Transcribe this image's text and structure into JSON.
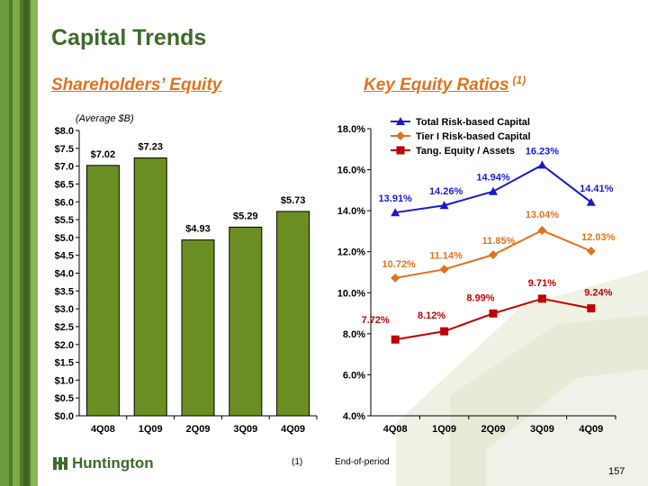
{
  "title": "Capital Trends",
  "left_heading": "Shareholders’ Equity",
  "right_heading": "Key Equity Ratios",
  "right_heading_sup": "(1)",
  "unit_note": "(Average $B)",
  "footnote": {
    "num": "(1)",
    "text": "End-of-period"
  },
  "page_number": "157",
  "logo_text": "Huntington",
  "colors": {
    "green": "#6b8e23",
    "brand_green": "#3d6b2a",
    "orange": "#e0731f",
    "blue": "#1a1acc",
    "red": "#c00000"
  },
  "chart_data": [
    {
      "type": "bar",
      "categories": [
        "4Q08",
        "1Q09",
        "2Q09",
        "3Q09",
        "4Q09"
      ],
      "values": [
        7.02,
        7.23,
        4.93,
        5.29,
        5.73
      ],
      "data_labels": [
        "$7.02",
        "$7.23",
        "$4.93",
        "$5.29",
        "$5.73"
      ],
      "ylim": [
        0,
        8
      ],
      "yticks": [
        "$0.0",
        "$0.5",
        "$1.0",
        "$1.5",
        "$2.0",
        "$2.5",
        "$3.0",
        "$3.5",
        "$4.0",
        "$4.5",
        "$5.0",
        "$5.5",
        "$6.0",
        "$6.5",
        "$7.0",
        "$7.5",
        "$8.0"
      ],
      "grid": false
    },
    {
      "type": "line",
      "categories": [
        "4Q08",
        "1Q09",
        "2Q09",
        "3Q09",
        "4Q09"
      ],
      "ylim": [
        4.0,
        18.0
      ],
      "yticks": [
        "4.0%",
        "6.0%",
        "8.0%",
        "10.0%",
        "12.0%",
        "14.0%",
        "16.0%",
        "18.0%"
      ],
      "legend_position": "top",
      "series": [
        {
          "name": "Total Risk-based Capital",
          "values": [
            13.91,
            14.26,
            14.94,
            16.23,
            14.41
          ],
          "labels": [
            "13.91%",
            "14.26%",
            "14.94%",
            "16.23%",
            "14.41%"
          ],
          "color": "#1a1acc",
          "marker": "triangle"
        },
        {
          "name": "Tier I Risk-based Capital",
          "values": [
            10.72,
            11.14,
            11.85,
            13.04,
            12.03
          ],
          "labels": [
            "10.72%",
            "11.14%",
            "11.85%",
            "13.04%",
            "12.03%"
          ],
          "color": "#e0731f",
          "marker": "diamond"
        },
        {
          "name": "Tang. Equity / Assets",
          "values": [
            7.72,
            8.12,
            8.99,
            9.71,
            9.24
          ],
          "labels": [
            "7.72%",
            "8.12%",
            "8.99%",
            "9.71%",
            "9.24%"
          ],
          "color": "#c00000",
          "marker": "square"
        }
      ]
    }
  ]
}
